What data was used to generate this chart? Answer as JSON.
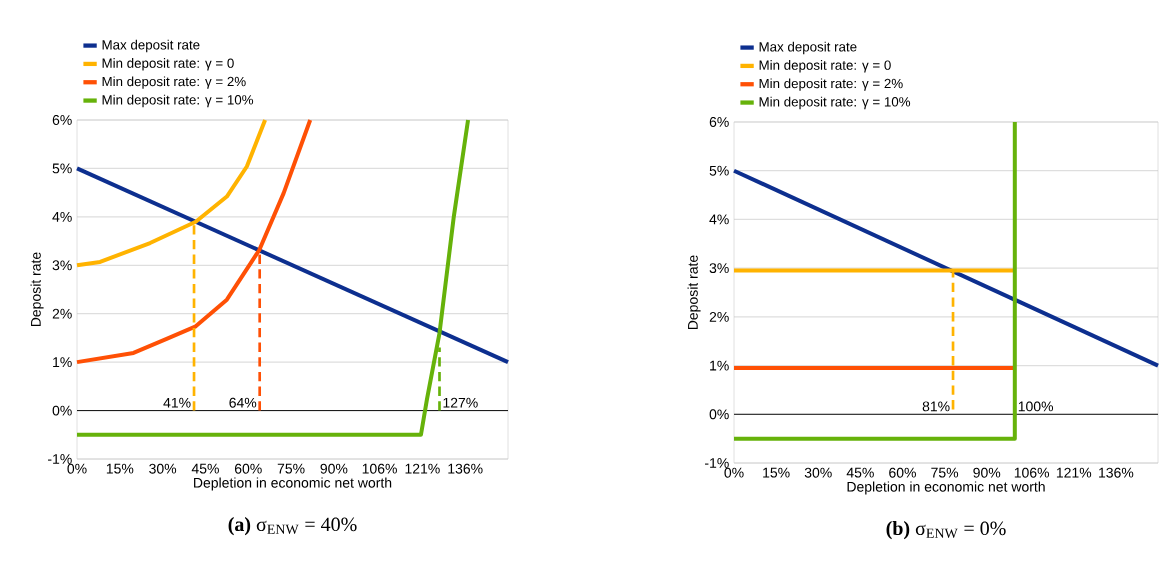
{
  "chart_data": [
    {
      "type": "line",
      "xlabel": "Depletion in economic net worth",
      "ylabel": "Deposit rate",
      "xlim": [
        0,
        151
      ],
      "ylim": [
        -1,
        6
      ],
      "xticks": [
        {
          "value": 0,
          "label": "0%"
        },
        {
          "value": 15,
          "label": "15%"
        },
        {
          "value": 30,
          "label": "30%"
        },
        {
          "value": 45,
          "label": "45%"
        },
        {
          "value": 60,
          "label": "60%"
        },
        {
          "value": 75,
          "label": "75%"
        },
        {
          "value": 90,
          "label": "90%"
        },
        {
          "value": 106,
          "label": "106%"
        },
        {
          "value": 121,
          "label": "121%"
        },
        {
          "value": 136,
          "label": "136%"
        }
      ],
      "yticks": [
        {
          "value": -1,
          "label": "-1%"
        },
        {
          "value": 0,
          "label": "0%"
        },
        {
          "value": 1,
          "label": "1%"
        },
        {
          "value": 2,
          "label": "2%"
        },
        {
          "value": 3,
          "label": "3%"
        },
        {
          "value": 4,
          "label": "4%"
        },
        {
          "value": 5,
          "label": "5%"
        },
        {
          "value": 6,
          "label": "6%"
        }
      ],
      "grid": "y",
      "legend": "top",
      "series": [
        {
          "name": "Max deposit rate",
          "color": "#0d2f8f",
          "x": [
            0,
            151
          ],
          "values": [
            5,
            1
          ]
        },
        {
          "name": "Min deposit rate: γ = 0",
          "color": "#ffb300",
          "x": [
            0,
            8.1,
            25.6,
            41.6,
            52.5,
            59.5,
            65.9
          ],
          "values": [
            3.0,
            3.07,
            3.46,
            3.9,
            4.42,
            5.04,
            6.0
          ]
        },
        {
          "name": "Min deposit rate: γ = 2%",
          "color": "#ff5005",
          "x": [
            0,
            19.8,
            31.4,
            41.6,
            52.5,
            63.9,
            72.4,
            81.7
          ],
          "values": [
            1.0,
            1.19,
            1.48,
            1.74,
            2.29,
            3.32,
            4.49,
            6.0
          ]
        },
        {
          "name": "Min deposit rate: γ = 10%",
          "color": "#66b20a",
          "x": [
            0,
            120.5,
            122.6,
            127,
            132,
            137
          ],
          "values": [
            -0.5,
            -0.5,
            0.23,
            1.6,
            4.0,
            6.0
          ]
        },
        {
          "color": "#ffb300",
          "line_style": "dashed",
          "x": [
            41,
            41
          ],
          "values": [
            0,
            3.9
          ]
        },
        {
          "color": "#ff5005",
          "line_style": "dashed",
          "x": [
            64,
            64
          ],
          "values": [
            0,
            3.3
          ]
        },
        {
          "color": "#66b20a",
          "line_style": "dashed",
          "x": [
            127,
            127
          ],
          "values": [
            0,
            1.3
          ]
        }
      ],
      "ref_lines": [
        {
          "axis": "y",
          "value": 0,
          "color": "#000000"
        }
      ],
      "annotations": [
        {
          "text": "41%",
          "x": 41,
          "y": 0
        },
        {
          "text": "64%",
          "x": 64,
          "y": 0
        },
        {
          "text": "127%",
          "x": 127,
          "y": 0
        },
        "**(a)** σ$_{ENW}$ = 40%"
      ]
    },
    {
      "type": "line",
      "xlabel": "Depletion in economic net worth",
      "ylabel": "Deposit rate",
      "xlim": [
        0,
        151
      ],
      "ylim": [
        -1,
        6
      ],
      "xticks": [
        {
          "value": 0,
          "label": "0%"
        },
        {
          "value": 15,
          "label": "15%"
        },
        {
          "value": 30,
          "label": "30%"
        },
        {
          "value": 45,
          "label": "45%"
        },
        {
          "value": 60,
          "label": "60%"
        },
        {
          "value": 75,
          "label": "75%"
        },
        {
          "value": 90,
          "label": "90%"
        },
        {
          "value": 106,
          "label": "106%"
        },
        {
          "value": 121,
          "label": "121%"
        },
        {
          "value": 136,
          "label": "136%"
        }
      ],
      "yticks": [
        {
          "value": -1,
          "label": "-1%"
        },
        {
          "value": 0,
          "label": "0%"
        },
        {
          "value": 1,
          "label": "1%"
        },
        {
          "value": 2,
          "label": "2%"
        },
        {
          "value": 3,
          "label": "3%"
        },
        {
          "value": 4,
          "label": "4%"
        },
        {
          "value": 5,
          "label": "5%"
        },
        {
          "value": 6,
          "label": "6%"
        }
      ],
      "grid": "y",
      "legend": "top",
      "series": [
        {
          "name": "Max deposit rate",
          "color": "#0d2f8f",
          "x": [
            0,
            151
          ],
          "values": [
            5,
            1
          ]
        },
        {
          "name": "Min deposit rate: γ = 0",
          "color": "#ffb300",
          "x": [
            0,
            100
          ],
          "values": [
            2.95,
            2.95
          ]
        },
        {
          "name": "Min deposit rate: γ = 2%",
          "color": "#ff5005",
          "x": [
            0,
            100
          ],
          "values": [
            0.95,
            0.95
          ]
        },
        {
          "name": "Min deposit rate: γ = 10%",
          "color": "#66b20a",
          "x": [
            0,
            100,
            100
          ],
          "values": [
            -0.5,
            -0.5,
            6
          ]
        },
        {
          "color": "#ffb300",
          "line_style": "dashed",
          "x": [
            78,
            78
          ],
          "values": [
            0.1,
            2.95
          ]
        }
      ],
      "ref_lines": [
        {
          "axis": "y",
          "value": 0,
          "color": "#000000"
        }
      ],
      "annotations": [
        {
          "text": "81%",
          "x": 78,
          "y": 0
        },
        {
          "text": "100%",
          "x": 100,
          "y": 0
        },
        "**(b)** σ$_{ENW}$ = 0%"
      ]
    }
  ]
}
